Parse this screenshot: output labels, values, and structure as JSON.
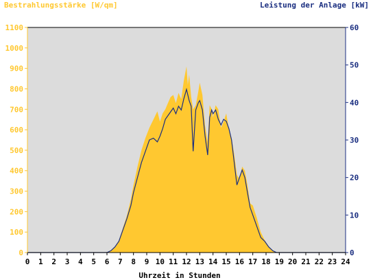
{
  "chart_data": {
    "type": "area",
    "title_left": "Bestrahlungsstärke [W/qm]",
    "title_right": "Leistung der Anlage [kW]",
    "xlabel": "Uhrzeit in Stunden",
    "x_range": [
      0,
      24
    ],
    "y_left_range": [
      0,
      1100
    ],
    "y_right_range": [
      0,
      60
    ],
    "x_ticks": [
      "0",
      "1",
      "2",
      "3",
      "4",
      "5",
      "6",
      "7",
      "8",
      "9",
      "10",
      "11",
      "12",
      "13",
      "14",
      "15",
      "16",
      "17",
      "18",
      "19",
      "20",
      "21",
      "22",
      "23",
      "24"
    ],
    "y_left_ticks": [
      "0",
      "100",
      "200",
      "300",
      "400",
      "500",
      "600",
      "700",
      "800",
      "900",
      "1000",
      "1100"
    ],
    "y_right_ticks": [
      "0",
      "10",
      "20",
      "30",
      "40",
      "50",
      "60"
    ],
    "colors": {
      "irradiance": "#FFC830",
      "power": "#1A2E80",
      "plot_background": "#DCDCDC",
      "left_axis_text": "#FFC830",
      "right_axis_text": "#1A2E80"
    },
    "series": [
      {
        "name": "Bestrahlungsstärke [W/qm]",
        "axis": "left",
        "style": "area",
        "x": [
          0,
          6.0,
          6.3,
          6.6,
          6.9,
          7.2,
          7.5,
          7.8,
          8.0,
          8.3,
          8.6,
          8.9,
          9.2,
          9.5,
          9.8,
          10.0,
          10.2,
          10.4,
          10.6,
          10.8,
          11.0,
          11.2,
          11.4,
          11.6,
          11.8,
          12.0,
          12.1,
          12.2,
          12.35,
          12.5,
          12.7,
          12.9,
          13.0,
          13.2,
          13.4,
          13.6,
          13.75,
          13.9,
          14.0,
          14.2,
          14.4,
          14.6,
          14.8,
          15.0,
          15.2,
          15.4,
          15.6,
          15.8,
          16.0,
          16.2,
          16.4,
          16.6,
          16.8,
          17.0,
          17.3,
          17.6,
          17.9,
          18.2,
          18.5,
          18.8,
          19.0,
          24
        ],
        "y": [
          0,
          0,
          10,
          30,
          60,
          120,
          180,
          260,
          330,
          420,
          500,
          560,
          610,
          650,
          690,
          640,
          680,
          700,
          730,
          760,
          770,
          730,
          780,
          750,
          840,
          910,
          820,
          870,
          760,
          700,
          720,
          790,
          830,
          770,
          620,
          540,
          720,
          700,
          660,
          720,
          700,
          610,
          640,
          680,
          600,
          560,
          480,
          380,
          360,
          420,
          400,
          330,
          240,
          230,
          170,
          100,
          60,
          30,
          10,
          0,
          0,
          0
        ]
      },
      {
        "name": "Leistung der Anlage [kW]",
        "axis": "right",
        "style": "line",
        "x": [
          0,
          6.0,
          6.3,
          6.6,
          6.9,
          7.2,
          7.5,
          7.8,
          8.0,
          8.3,
          8.6,
          8.9,
          9.2,
          9.5,
          9.8,
          10.0,
          10.2,
          10.4,
          10.6,
          10.8,
          11.0,
          11.2,
          11.4,
          11.6,
          11.8,
          12.0,
          12.2,
          12.35,
          12.5,
          12.7,
          12.9,
          13.0,
          13.2,
          13.4,
          13.6,
          13.75,
          13.9,
          14.0,
          14.2,
          14.4,
          14.6,
          14.8,
          15.0,
          15.2,
          15.4,
          15.6,
          15.8,
          16.0,
          16.2,
          16.4,
          16.6,
          16.8,
          17.0,
          17.3,
          17.6,
          17.9,
          18.2,
          18.5,
          18.8,
          19.0,
          24
        ],
        "y": [
          0,
          0,
          0.5,
          1.5,
          3,
          6,
          9,
          12.5,
          16,
          20,
          24,
          27,
          30,
          30.5,
          29.5,
          31,
          33,
          35.5,
          36.5,
          37.5,
          38.5,
          37,
          39,
          38,
          41,
          43.5,
          40.5,
          39,
          27,
          38,
          40,
          40.5,
          38,
          31,
          26,
          36,
          38,
          37,
          38,
          35.5,
          34,
          35.5,
          35,
          33,
          30,
          24,
          18,
          20,
          22,
          20,
          16,
          12,
          10,
          7,
          4,
          3,
          1.5,
          0.5,
          0,
          0,
          0
        ]
      }
    ]
  }
}
